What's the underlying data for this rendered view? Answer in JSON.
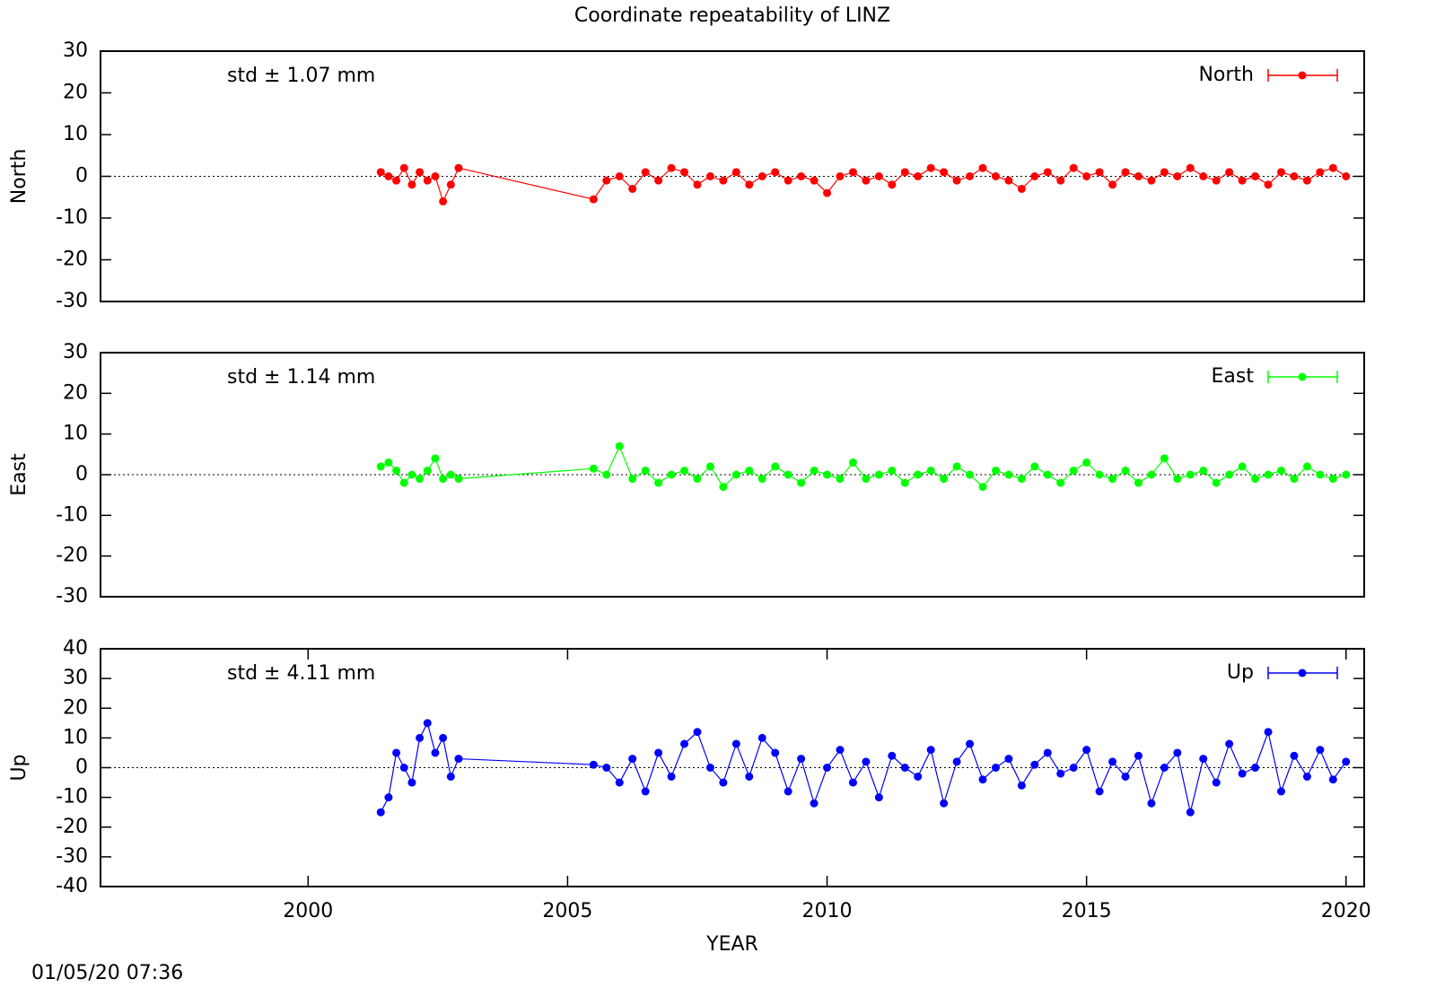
{
  "chart_data": [
    {
      "type": "line",
      "title": "Coordinate repeatability of LINZ",
      "ylabel": "North",
      "annotation": "std ± 1.07 mm",
      "x": [
        2001.4,
        2001.55,
        2001.7,
        2001.85,
        2002.0,
        2002.15,
        2002.3,
        2002.45,
        2002.6,
        2002.75,
        2002.9,
        2005.5,
        2005.75,
        2006,
        2006.25,
        2006.5,
        2006.75,
        2007,
        2007.25,
        2007.5,
        2007.75,
        2008,
        2008.25,
        2008.5,
        2008.75,
        2009,
        2009.25,
        2009.5,
        2009.75,
        2010,
        2010.25,
        2010.5,
        2010.75,
        2011,
        2011.25,
        2011.5,
        2011.75,
        2012,
        2012.25,
        2012.5,
        2012.75,
        2013,
        2013.25,
        2013.5,
        2013.75,
        2014,
        2014.25,
        2014.5,
        2014.75,
        2015,
        2015.25,
        2015.5,
        2015.75,
        2016,
        2016.25,
        2016.5,
        2016.75,
        2017,
        2017.25,
        2017.5,
        2017.75,
        2018,
        2018.25,
        2018.5,
        2018.75,
        2019,
        2019.25,
        2019.5,
        2019.75,
        2020
      ],
      "series": [
        {
          "name": "North",
          "color": "#ff0000",
          "values": [
            1,
            0,
            -1,
            2,
            -2,
            1,
            -1,
            0,
            -6,
            -2,
            2,
            -5.5,
            -1,
            0,
            -3,
            1,
            -1,
            2,
            1,
            -2,
            0,
            -1,
            1,
            -2,
            0,
            1,
            -1,
            0,
            -1,
            -4,
            0,
            1,
            -1,
            0,
            -2,
            1,
            0,
            2,
            1,
            -1,
            0,
            2,
            0,
            -1,
            -3,
            0,
            1,
            -1,
            2,
            0,
            1,
            -2,
            1,
            0,
            -1,
            1,
            0,
            2,
            0,
            -1,
            1,
            -1,
            0,
            -2,
            1,
            0,
            -1,
            1,
            2,
            0
          ]
        }
      ],
      "xlim": [
        1996,
        2020.35
      ],
      "ylim": [
        -30,
        30
      ],
      "yticks": [
        -30,
        -20,
        -10,
        0,
        10,
        20,
        30
      ],
      "zero_line": true
    },
    {
      "type": "line",
      "ylabel": "East",
      "annotation": "std ± 1.14 mm",
      "x": [
        2001.4,
        2001.55,
        2001.7,
        2001.85,
        2002.0,
        2002.15,
        2002.3,
        2002.45,
        2002.6,
        2002.75,
        2002.9,
        2005.5,
        2005.75,
        2006,
        2006.25,
        2006.5,
        2006.75,
        2007,
        2007.25,
        2007.5,
        2007.75,
        2008,
        2008.25,
        2008.5,
        2008.75,
        2009,
        2009.25,
        2009.5,
        2009.75,
        2010,
        2010.25,
        2010.5,
        2010.75,
        2011,
        2011.25,
        2011.5,
        2011.75,
        2012,
        2012.25,
        2012.5,
        2012.75,
        2013,
        2013.25,
        2013.5,
        2013.75,
        2014,
        2014.25,
        2014.5,
        2014.75,
        2015,
        2015.25,
        2015.5,
        2015.75,
        2016,
        2016.25,
        2016.5,
        2016.75,
        2017,
        2017.25,
        2017.5,
        2017.75,
        2018,
        2018.25,
        2018.5,
        2018.75,
        2019,
        2019.25,
        2019.5,
        2019.75,
        2020
      ],
      "series": [
        {
          "name": "East",
          "color": "#00ff00",
          "values": [
            2,
            3,
            1,
            -2,
            0,
            -1,
            1,
            4,
            -1,
            0,
            -1,
            1.5,
            0,
            7,
            -1,
            1,
            -2,
            0,
            1,
            -1,
            2,
            -3,
            0,
            1,
            -1,
            2,
            0,
            -2,
            1,
            0,
            -1,
            3,
            -1,
            0,
            1,
            -2,
            0,
            1,
            -1,
            2,
            0,
            -3,
            1,
            0,
            -1,
            2,
            0,
            -2,
            1,
            3,
            0,
            -1,
            1,
            -2,
            0,
            4,
            -1,
            0,
            1,
            -2,
            0,
            2,
            -1,
            0,
            1,
            -1,
            2,
            0,
            -1,
            0
          ]
        }
      ],
      "xlim": [
        1996,
        2020.35
      ],
      "ylim": [
        -30,
        30
      ],
      "yticks": [
        -30,
        -20,
        -10,
        0,
        10,
        20,
        30
      ],
      "zero_line": true
    },
    {
      "type": "line",
      "ylabel": "Up",
      "annotation": "std ± 4.11 mm",
      "xlabel": "YEAR",
      "timestamp": "01/05/20 07:36",
      "x": [
        2001.4,
        2001.55,
        2001.7,
        2001.85,
        2002.0,
        2002.15,
        2002.3,
        2002.45,
        2002.6,
        2002.75,
        2002.9,
        2005.5,
        2005.75,
        2006,
        2006.25,
        2006.5,
        2006.75,
        2007,
        2007.25,
        2007.5,
        2007.75,
        2008,
        2008.25,
        2008.5,
        2008.75,
        2009,
        2009.25,
        2009.5,
        2009.75,
        2010,
        2010.25,
        2010.5,
        2010.75,
        2011,
        2011.25,
        2011.5,
        2011.75,
        2012,
        2012.25,
        2012.5,
        2012.75,
        2013,
        2013.25,
        2013.5,
        2013.75,
        2014,
        2014.25,
        2014.5,
        2014.75,
        2015,
        2015.25,
        2015.5,
        2015.75,
        2016,
        2016.25,
        2016.5,
        2016.75,
        2017,
        2017.25,
        2017.5,
        2017.75,
        2018,
        2018.25,
        2018.5,
        2018.75,
        2019,
        2019.25,
        2019.5,
        2019.75,
        2020
      ],
      "series": [
        {
          "name": "Up",
          "color": "#0000ff",
          "values": [
            -15,
            -10,
            5,
            0,
            -5,
            10,
            15,
            5,
            10,
            -3,
            3,
            1,
            0,
            -5,
            3,
            -8,
            5,
            -3,
            8,
            12,
            0,
            -5,
            8,
            -3,
            10,
            5,
            -8,
            3,
            -12,
            0,
            6,
            -5,
            2,
            -10,
            4,
            0,
            -3,
            6,
            -12,
            2,
            8,
            -4,
            0,
            3,
            -6,
            1,
            5,
            -2,
            0,
            6,
            -8,
            2,
            -3,
            4,
            -12,
            0,
            5,
            -15,
            3,
            -5,
            8,
            -2,
            0,
            12,
            -8,
            4,
            -3,
            6,
            -4,
            2
          ]
        }
      ],
      "xlim": [
        1996,
        2020.35
      ],
      "xticks": [
        2000,
        2005,
        2010,
        2015,
        2020
      ],
      "ylim": [
        -40,
        40
      ],
      "yticks": [
        -40,
        -30,
        -20,
        -10,
        0,
        10,
        20,
        30,
        40
      ],
      "zero_line": true
    }
  ]
}
